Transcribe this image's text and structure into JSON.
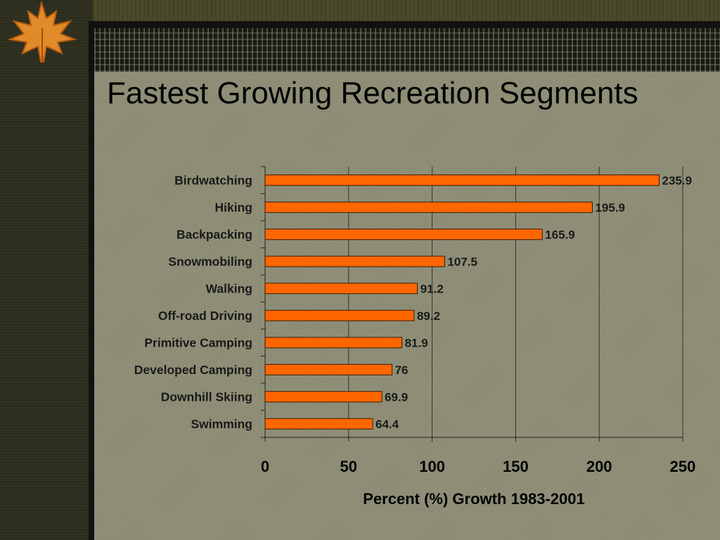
{
  "slide": {
    "title": "Fastest Growing Recreation Segments"
  },
  "colors": {
    "bar_fill": "#ff6600",
    "bar_stroke": "#3a1a00",
    "gridline": "#333333",
    "slide_bg": "#8e8e76"
  },
  "icons": {
    "logo": "maple-leaf-icon"
  },
  "chart_data": {
    "type": "bar",
    "orientation": "horizontal",
    "title": "Fastest Growing Recreation Segments",
    "xlabel": "Percent (%) Growth 1983-2001",
    "ylabel": "",
    "xlim": [
      0,
      250
    ],
    "xticks": [
      0,
      50,
      100,
      150,
      200,
      250
    ],
    "grid": "vertical",
    "data_labels": true,
    "categories": [
      "Birdwatching",
      "Hiking",
      "Backpacking",
      "Snowmobiling",
      "Walking",
      "Off-road Driving",
      "Primitive Camping",
      "Developed Camping",
      "Downhill Skiing",
      "Swimming"
    ],
    "values": [
      235.9,
      195.9,
      165.9,
      107.5,
      91.2,
      89.2,
      81.9,
      76,
      69.9,
      64.4
    ]
  }
}
